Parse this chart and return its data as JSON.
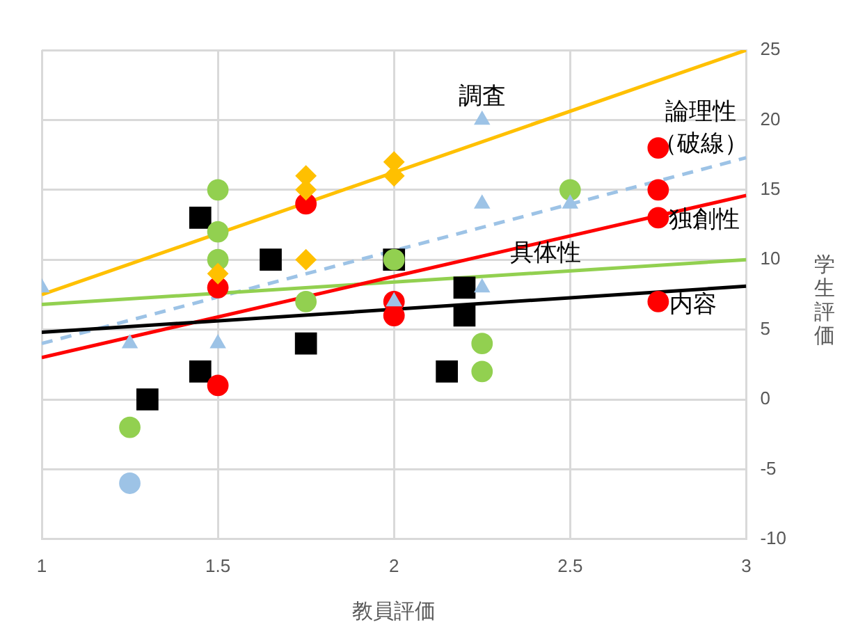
{
  "chart_data": {
    "type": "scatter",
    "xlabel": "教員評価",
    "ylabel": "学生評価",
    "xlim": [
      1,
      3
    ],
    "xticks": [
      1,
      1.5,
      2,
      2.5,
      3
    ],
    "ylim": [
      -10,
      25
    ],
    "yticks": [
      -10,
      -5,
      0,
      5,
      10,
      15,
      20,
      25
    ],
    "grid": true,
    "legend": false,
    "series": [
      {
        "type": "scatter",
        "marker": "square",
        "color": "#000000",
        "x": [
          1.3,
          1.45,
          1.45,
          1.65,
          1.75,
          2.0,
          2.15,
          2.2,
          2.2
        ],
        "values": [
          0,
          13,
          2,
          10,
          4,
          10,
          2,
          8,
          6
        ]
      },
      {
        "type": "scatter",
        "marker": "circle",
        "color": "#ff0000",
        "x": [
          1.5,
          1.5,
          1.75,
          2.0,
          2.0,
          2.75,
          2.75,
          2.75,
          2.75
        ],
        "values": [
          8,
          1,
          14,
          7,
          6,
          18,
          15,
          13,
          7
        ]
      },
      {
        "type": "scatter",
        "marker": "circle",
        "color": "#92d050",
        "x": [
          1.25,
          1.5,
          1.5,
          1.5,
          1.75,
          2.0,
          2.25,
          2.25,
          2.5
        ],
        "values": [
          -2,
          15,
          12,
          10,
          7,
          10,
          4,
          2,
          15
        ]
      },
      {
        "type": "scatter",
        "marker": "triangle",
        "color": "#9dc3e6",
        "x": [
          1,
          1.25,
          1.5,
          2.0,
          2.25,
          2.25,
          2.25,
          2.5
        ],
        "values": [
          8,
          4,
          4,
          7,
          20,
          14,
          8,
          14
        ]
      },
      {
        "type": "scatter",
        "marker": "circle",
        "color": "#9dc3e6",
        "x": [
          1.25
        ],
        "values": [
          -6
        ]
      },
      {
        "type": "scatter",
        "marker": "diamond",
        "color": "#ffc000",
        "x": [
          1.5,
          1.75,
          1.75,
          1.75,
          2.0,
          2.0
        ],
        "values": [
          9,
          16,
          15,
          10,
          17,
          16
        ]
      },
      {
        "type": "line",
        "marker": "none",
        "line_style": "solid",
        "color": "#000000",
        "x": [
          1,
          3
        ],
        "values": [
          4.8,
          8.1
        ]
      },
      {
        "type": "line",
        "marker": "none",
        "line_style": "solid",
        "color": "#ff0000",
        "x": [
          1,
          3
        ],
        "values": [
          3,
          14.6
        ]
      },
      {
        "type": "line",
        "marker": "none",
        "line_style": "solid",
        "color": "#92d050",
        "x": [
          1,
          3
        ],
        "values": [
          6.8,
          10
        ]
      },
      {
        "type": "line",
        "marker": "none",
        "line_style": "dashed",
        "color": "#9dc3e6",
        "x": [
          1,
          3
        ],
        "values": [
          4,
          17.3
        ]
      },
      {
        "type": "line",
        "marker": "none",
        "line_style": "solid",
        "color": "#ffc000",
        "x": [
          1,
          3
        ],
        "values": [
          7.5,
          25
        ]
      }
    ],
    "annotations": [
      "調査",
      "論理性",
      "（破線）",
      "独創性",
      "具体性",
      "内容"
    ]
  }
}
